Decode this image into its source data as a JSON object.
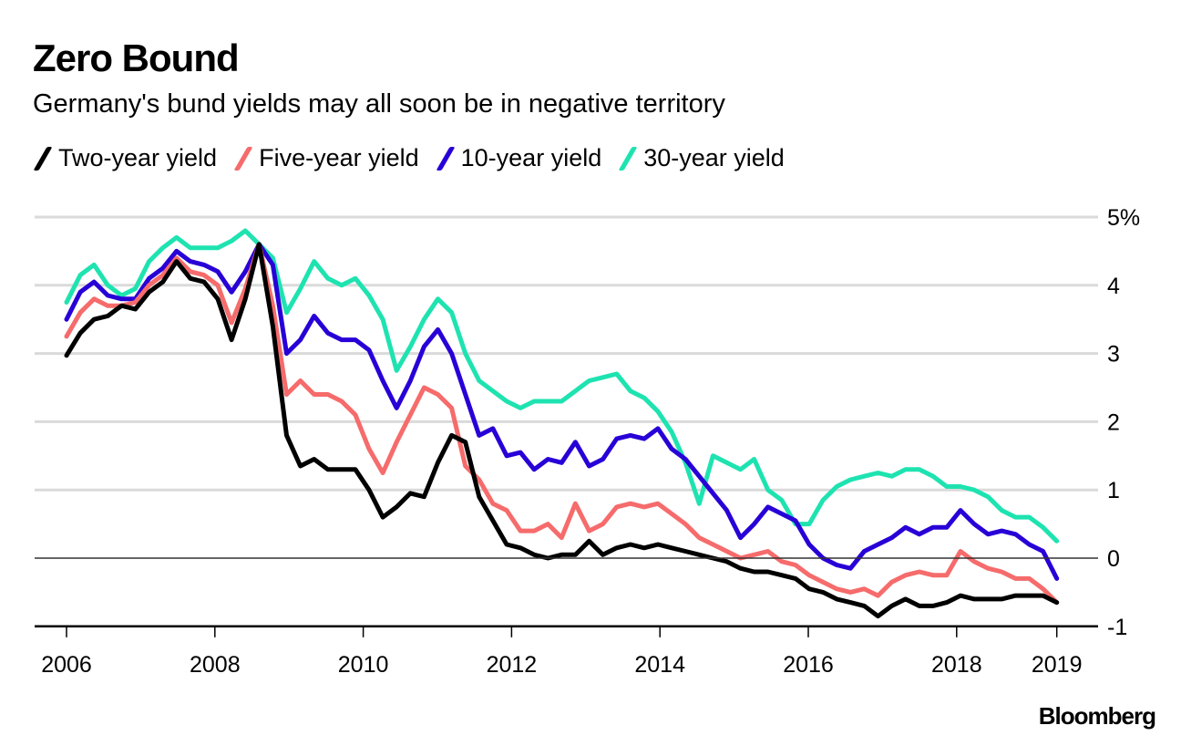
{
  "header": {
    "title": "Zero Bound",
    "subtitle": "Germany's bund yields may all soon be in negative territory"
  },
  "legend": [
    {
      "label": "Two-year yield",
      "color": "#000000"
    },
    {
      "label": "Five-year yield",
      "color": "#f66b6b"
    },
    {
      "label": "10-year yield",
      "color": "#2800d7"
    },
    {
      "label": "30-year yield",
      "color": "#1ee3b0"
    }
  ],
  "source": "Bloomberg",
  "chart_data": {
    "type": "line",
    "title": "Zero Bound",
    "subtitle": "Germany's bund yields may all soon be in negative territory",
    "xlabel": "",
    "ylabel": "",
    "ylim": [
      -1,
      5
    ],
    "xlim": [
      2006.0,
      2019.35
    ],
    "y_ticks": [
      -1,
      0,
      1,
      2,
      3,
      4,
      5
    ],
    "y_tick_labels": [
      "-1",
      "0",
      "1",
      "2",
      "3",
      "4",
      "5%"
    ],
    "x_ticks": [
      2006,
      2008,
      2010,
      2012,
      2014,
      2016,
      2018,
      2019.35
    ],
    "x_tick_labels": [
      "2006",
      "2008",
      "2010",
      "2012",
      "2014",
      "2016",
      "2018",
      "2019"
    ],
    "grid": true,
    "legend_position": "top-left",
    "x_start": 2006.0,
    "x_step_months": 2,
    "series": [
      {
        "name": "Two-year yield",
        "color": "#000000",
        "values": [
          2.97,
          3.3,
          3.5,
          3.55,
          3.7,
          3.65,
          3.9,
          4.05,
          4.35,
          4.1,
          4.05,
          3.8,
          3.2,
          3.8,
          4.6,
          3.4,
          1.8,
          1.35,
          1.45,
          1.3,
          1.3,
          1.3,
          1.0,
          0.6,
          0.75,
          0.95,
          0.9,
          1.4,
          1.8,
          1.7,
          0.9,
          0.55,
          0.2,
          0.15,
          0.05,
          0.0,
          0.05,
          0.05,
          0.25,
          0.05,
          0.15,
          0.2,
          0.15,
          0.2,
          0.15,
          0.1,
          0.05,
          0.0,
          -0.05,
          -0.15,
          -0.2,
          -0.2,
          -0.25,
          -0.3,
          -0.45,
          -0.5,
          -0.6,
          -0.65,
          -0.7,
          -0.85,
          -0.7,
          -0.6,
          -0.7,
          -0.7,
          -0.65,
          -0.55,
          -0.6,
          -0.6,
          -0.6,
          -0.55,
          -0.55,
          -0.55,
          -0.65
        ]
      },
      {
        "name": "Five-year yield",
        "color": "#f66b6b",
        "values": [
          3.25,
          3.6,
          3.8,
          3.7,
          3.7,
          3.75,
          4.0,
          4.15,
          4.4,
          4.2,
          4.15,
          4.0,
          3.45,
          3.95,
          4.6,
          3.7,
          2.4,
          2.6,
          2.4,
          2.4,
          2.3,
          2.1,
          1.6,
          1.25,
          1.7,
          2.1,
          2.5,
          2.4,
          2.2,
          1.35,
          1.15,
          0.8,
          0.7,
          0.4,
          0.4,
          0.5,
          0.3,
          0.8,
          0.4,
          0.5,
          0.75,
          0.8,
          0.75,
          0.8,
          0.65,
          0.5,
          0.3,
          0.2,
          0.1,
          0.0,
          0.05,
          0.1,
          -0.05,
          -0.1,
          -0.25,
          -0.35,
          -0.45,
          -0.5,
          -0.45,
          -0.55,
          -0.35,
          -0.25,
          -0.2,
          -0.25,
          -0.25,
          0.1,
          -0.05,
          -0.15,
          -0.2,
          -0.3,
          -0.3,
          -0.45,
          -0.65
        ]
      },
      {
        "name": "10-year yield",
        "color": "#2800d7",
        "values": [
          3.5,
          3.9,
          4.05,
          3.85,
          3.8,
          3.8,
          4.1,
          4.25,
          4.5,
          4.35,
          4.3,
          4.2,
          3.9,
          4.2,
          4.6,
          4.3,
          3.0,
          3.2,
          3.55,
          3.3,
          3.2,
          3.2,
          3.05,
          2.6,
          2.2,
          2.6,
          3.1,
          3.35,
          3.0,
          2.4,
          1.8,
          1.9,
          1.5,
          1.55,
          1.3,
          1.45,
          1.4,
          1.7,
          1.35,
          1.45,
          1.75,
          1.8,
          1.75,
          1.9,
          1.6,
          1.45,
          1.2,
          0.95,
          0.7,
          0.3,
          0.5,
          0.75,
          0.65,
          0.55,
          0.2,
          0.0,
          -0.1,
          -0.15,
          0.1,
          0.2,
          0.3,
          0.45,
          0.35,
          0.45,
          0.45,
          0.7,
          0.5,
          0.35,
          0.4,
          0.35,
          0.2,
          0.1,
          -0.3
        ]
      },
      {
        "name": "30-year yield",
        "color": "#1ee3b0",
        "values": [
          3.75,
          4.15,
          4.3,
          4.0,
          3.85,
          3.95,
          4.35,
          4.55,
          4.7,
          4.55,
          4.55,
          4.55,
          4.65,
          4.8,
          4.6,
          4.4,
          3.6,
          3.95,
          4.35,
          4.1,
          4.0,
          4.1,
          3.85,
          3.5,
          2.75,
          3.1,
          3.5,
          3.8,
          3.6,
          3.0,
          2.6,
          2.45,
          2.3,
          2.2,
          2.3,
          2.3,
          2.3,
          2.45,
          2.6,
          2.65,
          2.7,
          2.45,
          2.35,
          2.15,
          1.85,
          1.4,
          0.8,
          1.5,
          1.4,
          1.3,
          1.45,
          1.0,
          0.85,
          0.5,
          0.5,
          0.85,
          1.05,
          1.15,
          1.2,
          1.25,
          1.2,
          1.3,
          1.3,
          1.2,
          1.05,
          1.05,
          1.0,
          0.9,
          0.7,
          0.6,
          0.6,
          0.45,
          0.25
        ]
      }
    ]
  }
}
